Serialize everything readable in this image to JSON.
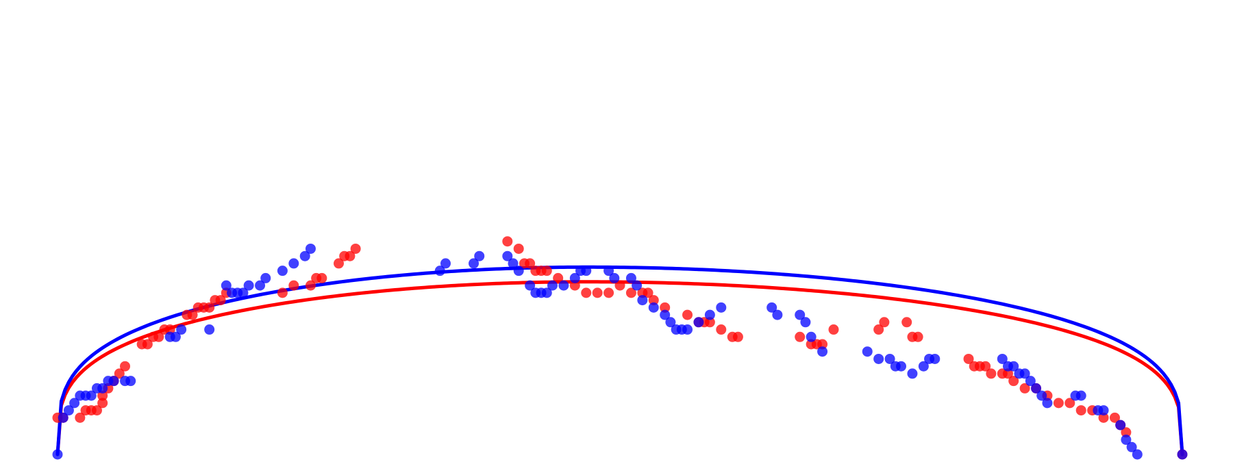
{
  "chart_data": {
    "type": "scatter",
    "xlim": [
      0,
      1
    ],
    "ylim": [
      0,
      0.6
    ],
    "grid": false,
    "axes_visible": false,
    "legend": "none",
    "series": [
      {
        "color": "#ff0000",
        "points": [
          [
            0.0,
            0.05
          ],
          [
            0.005,
            0.05
          ],
          [
            0.02,
            0.05
          ],
          [
            0.025,
            0.06
          ],
          [
            0.03,
            0.06
          ],
          [
            0.035,
            0.06
          ],
          [
            0.04,
            0.07
          ],
          [
            0.04,
            0.08
          ],
          [
            0.045,
            0.09
          ],
          [
            0.05,
            0.1
          ],
          [
            0.055,
            0.11
          ],
          [
            0.06,
            0.12
          ],
          [
            0.075,
            0.15
          ],
          [
            0.08,
            0.15
          ],
          [
            0.085,
            0.16
          ],
          [
            0.09,
            0.16
          ],
          [
            0.095,
            0.17
          ],
          [
            0.1,
            0.17
          ],
          [
            0.115,
            0.19
          ],
          [
            0.12,
            0.19
          ],
          [
            0.125,
            0.2
          ],
          [
            0.13,
            0.2
          ],
          [
            0.135,
            0.2
          ],
          [
            0.14,
            0.21
          ],
          [
            0.145,
            0.21
          ],
          [
            0.15,
            0.22
          ],
          [
            0.2,
            0.22
          ],
          [
            0.21,
            0.23
          ],
          [
            0.225,
            0.23
          ],
          [
            0.23,
            0.24
          ],
          [
            0.235,
            0.24
          ],
          [
            0.25,
            0.26
          ],
          [
            0.255,
            0.27
          ],
          [
            0.26,
            0.27
          ],
          [
            0.265,
            0.28
          ],
          [
            0.4,
            0.29
          ],
          [
            0.41,
            0.28
          ],
          [
            0.415,
            0.26
          ],
          [
            0.42,
            0.26
          ],
          [
            0.425,
            0.25
          ],
          [
            0.43,
            0.25
          ],
          [
            0.435,
            0.25
          ],
          [
            0.445,
            0.24
          ],
          [
            0.46,
            0.23
          ],
          [
            0.47,
            0.22
          ],
          [
            0.48,
            0.22
          ],
          [
            0.49,
            0.22
          ],
          [
            0.5,
            0.23
          ],
          [
            0.51,
            0.22
          ],
          [
            0.52,
            0.22
          ],
          [
            0.525,
            0.22
          ],
          [
            0.53,
            0.21
          ],
          [
            0.54,
            0.2
          ],
          [
            0.56,
            0.19
          ],
          [
            0.57,
            0.18
          ],
          [
            0.575,
            0.18
          ],
          [
            0.58,
            0.18
          ],
          [
            0.59,
            0.17
          ],
          [
            0.6,
            0.16
          ],
          [
            0.605,
            0.16
          ],
          [
            0.66,
            0.16
          ],
          [
            0.67,
            0.15
          ],
          [
            0.675,
            0.15
          ],
          [
            0.68,
            0.15
          ],
          [
            0.69,
            0.17
          ],
          [
            0.73,
            0.17
          ],
          [
            0.735,
            0.18
          ],
          [
            0.755,
            0.18
          ],
          [
            0.76,
            0.16
          ],
          [
            0.765,
            0.16
          ],
          [
            0.81,
            0.13
          ],
          [
            0.815,
            0.12
          ],
          [
            0.82,
            0.12
          ],
          [
            0.825,
            0.12
          ],
          [
            0.83,
            0.11
          ],
          [
            0.84,
            0.11
          ],
          [
            0.845,
            0.11
          ],
          [
            0.85,
            0.1
          ],
          [
            0.86,
            0.09
          ],
          [
            0.87,
            0.09
          ],
          [
            0.88,
            0.08
          ],
          [
            0.89,
            0.07
          ],
          [
            0.9,
            0.07
          ],
          [
            0.91,
            0.06
          ],
          [
            0.92,
            0.06
          ],
          [
            0.93,
            0.05
          ],
          [
            0.94,
            0.05
          ],
          [
            0.945,
            0.04
          ],
          [
            0.95,
            0.03
          ],
          [
            1.0,
            0.0
          ]
        ]
      },
      {
        "color": "#0000ff",
        "points": [
          [
            0.0,
            0.0
          ],
          [
            0.005,
            0.05
          ],
          [
            0.01,
            0.06
          ],
          [
            0.015,
            0.07
          ],
          [
            0.02,
            0.08
          ],
          [
            0.025,
            0.08
          ],
          [
            0.03,
            0.08
          ],
          [
            0.035,
            0.09
          ],
          [
            0.04,
            0.09
          ],
          [
            0.045,
            0.1
          ],
          [
            0.05,
            0.1
          ],
          [
            0.06,
            0.1
          ],
          [
            0.065,
            0.1
          ],
          [
            0.1,
            0.16
          ],
          [
            0.105,
            0.16
          ],
          [
            0.11,
            0.17
          ],
          [
            0.135,
            0.17
          ],
          [
            0.15,
            0.23
          ],
          [
            0.155,
            0.22
          ],
          [
            0.16,
            0.22
          ],
          [
            0.165,
            0.22
          ],
          [
            0.17,
            0.23
          ],
          [
            0.18,
            0.23
          ],
          [
            0.185,
            0.24
          ],
          [
            0.2,
            0.25
          ],
          [
            0.21,
            0.26
          ],
          [
            0.22,
            0.27
          ],
          [
            0.225,
            0.28
          ],
          [
            0.34,
            0.25
          ],
          [
            0.345,
            0.26
          ],
          [
            0.37,
            0.26
          ],
          [
            0.375,
            0.27
          ],
          [
            0.4,
            0.27
          ],
          [
            0.405,
            0.26
          ],
          [
            0.41,
            0.25
          ],
          [
            0.42,
            0.23
          ],
          [
            0.425,
            0.22
          ],
          [
            0.43,
            0.22
          ],
          [
            0.435,
            0.22
          ],
          [
            0.44,
            0.23
          ],
          [
            0.45,
            0.23
          ],
          [
            0.46,
            0.24
          ],
          [
            0.465,
            0.25
          ],
          [
            0.47,
            0.25
          ],
          [
            0.49,
            0.25
          ],
          [
            0.495,
            0.24
          ],
          [
            0.51,
            0.24
          ],
          [
            0.515,
            0.23
          ],
          [
            0.52,
            0.21
          ],
          [
            0.53,
            0.2
          ],
          [
            0.54,
            0.19
          ],
          [
            0.545,
            0.18
          ],
          [
            0.55,
            0.17
          ],
          [
            0.555,
            0.17
          ],
          [
            0.56,
            0.17
          ],
          [
            0.57,
            0.18
          ],
          [
            0.58,
            0.19
          ],
          [
            0.59,
            0.2
          ],
          [
            0.635,
            0.2
          ],
          [
            0.64,
            0.19
          ],
          [
            0.66,
            0.19
          ],
          [
            0.665,
            0.18
          ],
          [
            0.67,
            0.16
          ],
          [
            0.68,
            0.14
          ],
          [
            0.72,
            0.14
          ],
          [
            0.73,
            0.13
          ],
          [
            0.74,
            0.13
          ],
          [
            0.745,
            0.12
          ],
          [
            0.75,
            0.12
          ],
          [
            0.76,
            0.11
          ],
          [
            0.77,
            0.12
          ],
          [
            0.775,
            0.13
          ],
          [
            0.78,
            0.13
          ],
          [
            0.84,
            0.13
          ],
          [
            0.845,
            0.12
          ],
          [
            0.85,
            0.12
          ],
          [
            0.855,
            0.11
          ],
          [
            0.86,
            0.11
          ],
          [
            0.865,
            0.1
          ],
          [
            0.87,
            0.09
          ],
          [
            0.875,
            0.08
          ],
          [
            0.88,
            0.07
          ],
          [
            0.905,
            0.08
          ],
          [
            0.91,
            0.08
          ],
          [
            0.925,
            0.06
          ],
          [
            0.93,
            0.06
          ],
          [
            0.945,
            0.04
          ],
          [
            0.95,
            0.02
          ],
          [
            0.955,
            0.01
          ],
          [
            0.96,
            0.0
          ],
          [
            1.0,
            0.0
          ]
        ]
      }
    ],
    "fit_curves": [
      {
        "color": "#ff0000",
        "x_start": 0.0,
        "x_end": 1.0,
        "peak_y": 0.235,
        "peak_x": 0.47,
        "exponent": 0.28
      },
      {
        "color": "#0000ff",
        "x_start": 0.0,
        "x_end": 1.0,
        "peak_y": 0.255,
        "peak_x": 0.47,
        "exponent": 0.28
      }
    ]
  }
}
